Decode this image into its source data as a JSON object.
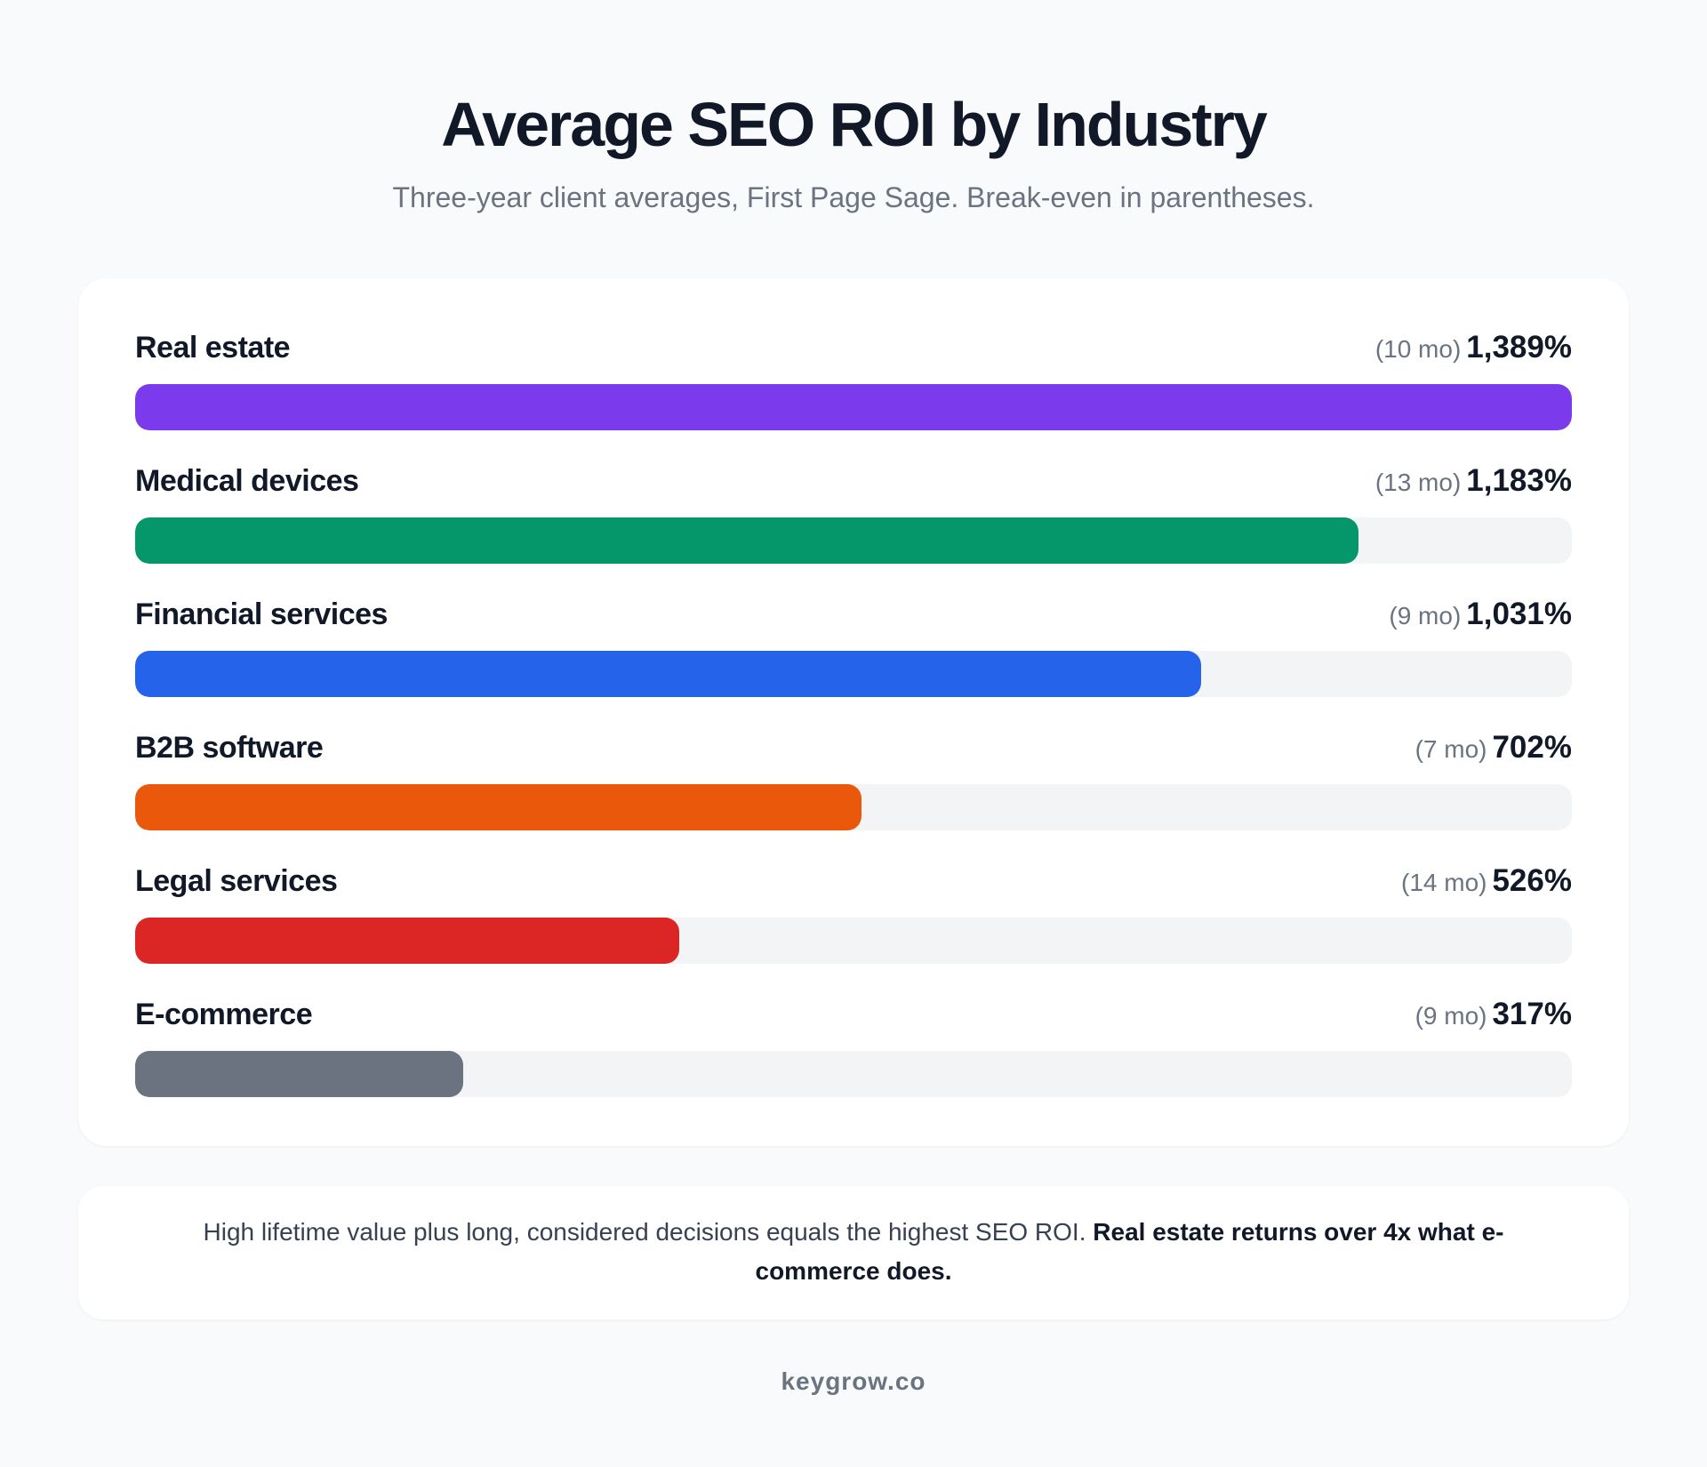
{
  "title": "Average SEO ROI by Industry",
  "subtitle": "Three-year client averages, First Page Sage. Break-even in parentheses.",
  "chart_data": {
    "type": "bar",
    "orientation": "horizontal",
    "title": "Average SEO ROI by Industry",
    "subtitle": "Three-year client averages, First Page Sage. Break-even in parentheses.",
    "unit": "%",
    "categories": [
      "Real estate",
      "Medical devices",
      "Financial services",
      "B2B software",
      "Legal services",
      "E-commerce"
    ],
    "values": [
      1389,
      1183,
      1031,
      702,
      526,
      317
    ],
    "value_labels": [
      "1,389%",
      "1,183%",
      "1,031%",
      "702%",
      "526%",
      "317%"
    ],
    "break_even": [
      "(10 mo)",
      "(13 mo)",
      "(9 mo)",
      "(7 mo)",
      "(14 mo)",
      "(9 mo)"
    ],
    "colors": [
      "#7c3aed",
      "#059669",
      "#2563eb",
      "#ea580c",
      "#dc2626",
      "#6b7280"
    ],
    "track_color": "#f3f4f6",
    "xlim": [
      0,
      1389
    ],
    "grid": false,
    "legend": "none"
  },
  "note": {
    "text": "High lifetime value plus long, considered decisions equals the highest SEO ROI.",
    "emphasis": "Real estate returns over 4x what e-commerce does."
  },
  "footer": "keygrow.co"
}
